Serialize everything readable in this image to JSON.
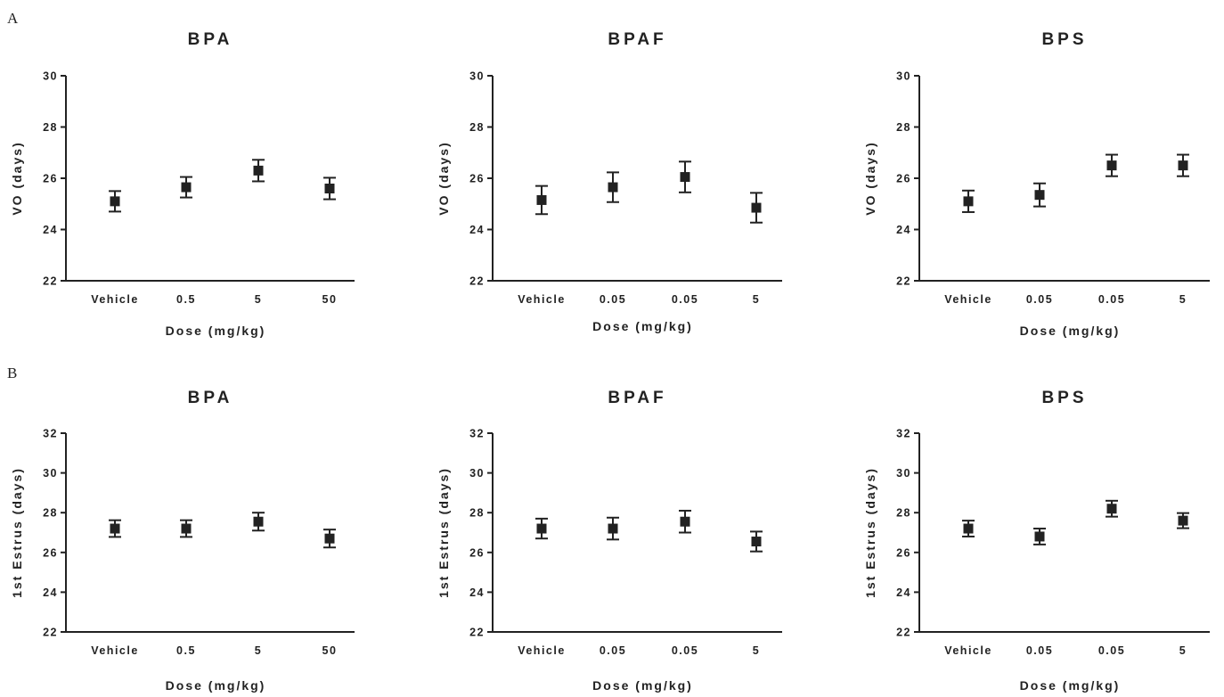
{
  "panels": [
    {
      "letter": "A"
    },
    {
      "letter": "B"
    }
  ],
  "chart_data": [
    {
      "type": "scatter",
      "panel": "A",
      "title": "BPA",
      "xlabel": "Dose (mg/kg)",
      "ylabel": "VO (days)",
      "categories": [
        "Vehicle",
        "0.5",
        "5",
        "50"
      ],
      "ylim": [
        22,
        30
      ],
      "yticks": [
        22,
        24,
        26,
        28,
        30
      ],
      "values": [
        25.1,
        25.65,
        26.3,
        25.6
      ],
      "error": [
        0.4,
        0.4,
        0.42,
        0.42
      ],
      "marker_color": "#222222"
    },
    {
      "type": "scatter",
      "panel": "A",
      "title": "BPAF",
      "xlabel": "Dose (mg/kg)",
      "ylabel": "VO (days)",
      "categories": [
        "Vehicle",
        "0.05",
        "0.05",
        "5"
      ],
      "ylim": [
        22,
        30
      ],
      "yticks": [
        22,
        24,
        26,
        28,
        30
      ],
      "values": [
        25.15,
        25.65,
        26.05,
        24.85
      ],
      "error": [
        0.55,
        0.58,
        0.6,
        0.58
      ],
      "marker_color": "#222222"
    },
    {
      "type": "scatter",
      "panel": "A",
      "title": "BPS",
      "xlabel": "Dose (mg/kg)",
      "ylabel": "VO (days)",
      "categories": [
        "Vehicle",
        "0.05",
        "0.05",
        "5"
      ],
      "ylim": [
        22,
        30
      ],
      "yticks": [
        22,
        24,
        26,
        28,
        30
      ],
      "values": [
        25.1,
        25.35,
        26.5,
        26.5
      ],
      "error": [
        0.42,
        0.45,
        0.42,
        0.42
      ],
      "marker_color": "#222222"
    },
    {
      "type": "scatter",
      "panel": "B",
      "title": "BPA",
      "xlabel": "Dose (mg/kg)",
      "ylabel": "1st Estrus (days)",
      "categories": [
        "Vehicle",
        "0.5",
        "5",
        "50"
      ],
      "ylim": [
        22,
        32
      ],
      "yticks": [
        22,
        24,
        26,
        28,
        30,
        32
      ],
      "values": [
        27.2,
        27.2,
        27.55,
        26.7
      ],
      "error": [
        0.42,
        0.42,
        0.45,
        0.45
      ],
      "marker_color": "#222222"
    },
    {
      "type": "scatter",
      "panel": "B",
      "title": "BPAF",
      "xlabel": "Dose (mg/kg)",
      "ylabel": "1st Estrus (days)",
      "categories": [
        "Vehicle",
        "0.05",
        "0.05",
        "5"
      ],
      "ylim": [
        22,
        32
      ],
      "yticks": [
        22,
        24,
        26,
        28,
        30,
        32
      ],
      "values": [
        27.2,
        27.2,
        27.55,
        26.55
      ],
      "error": [
        0.5,
        0.55,
        0.55,
        0.5
      ],
      "marker_color": "#222222"
    },
    {
      "type": "scatter",
      "panel": "B",
      "title": "BPS",
      "xlabel": "Dose (mg/kg)",
      "ylabel": "1st Estrus (days)",
      "categories": [
        "Vehicle",
        "0.05",
        "0.05",
        "5"
      ],
      "ylim": [
        22,
        32
      ],
      "yticks": [
        22,
        24,
        26,
        28,
        30,
        32
      ],
      "values": [
        27.2,
        26.8,
        28.2,
        27.6
      ],
      "error": [
        0.4,
        0.4,
        0.4,
        0.38
      ],
      "marker_color": "#222222"
    }
  ]
}
